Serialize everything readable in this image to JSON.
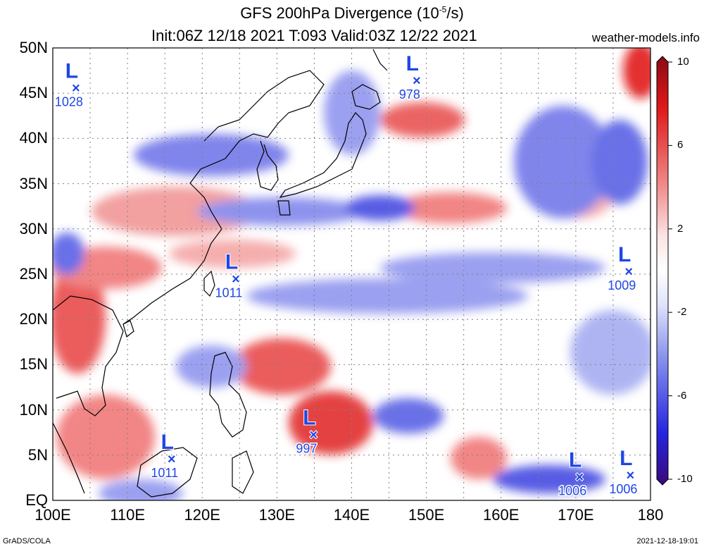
{
  "title": {
    "line1_prefix": "GFS 200hPa Divergence (10",
    "line1_exp": "-5",
    "line1_suffix": "/s)",
    "line2": "Init:06Z 12/18 2021 T:093 Valid:03Z 12/22 2021"
  },
  "site": "weather-models.info",
  "footer_left": "GrADS/COLA",
  "footer_right": "2021-12-18-19:01",
  "map": {
    "lon_range": [
      100,
      180
    ],
    "lat_range": [
      0,
      50
    ],
    "lat_labels": [
      "50N",
      "45N",
      "40N",
      "35N",
      "30N",
      "25N",
      "20N",
      "15N",
      "10N",
      "5N",
      "EQ"
    ],
    "lon_labels": [
      "100E",
      "110E",
      "120E",
      "130E",
      "140E",
      "150E",
      "160E",
      "170E",
      "180"
    ],
    "colors": {
      "positive_strong": "#e01010",
      "positive_weak": "#f4a0a0",
      "negative_strong": "#2020e0",
      "negative_weak": "#a0a8f0",
      "low_marker": "#1e46e6"
    }
  },
  "lows": [
    {
      "label": "L",
      "value": "1028",
      "lon": 103.1,
      "lat": 45.6
    },
    {
      "label": "L",
      "value": "978",
      "lon": 148.7,
      "lat": 46.4
    },
    {
      "label": "L",
      "value": "1011",
      "lon": 124.5,
      "lat": 24.5
    },
    {
      "label": "L",
      "value": "1009",
      "lon": 177.1,
      "lat": 25.3
    },
    {
      "label": "L",
      "value": "997",
      "lon": 134.9,
      "lat": 7.3
    },
    {
      "label": "L",
      "value": "1011",
      "lon": 115.9,
      "lat": 4.6
    },
    {
      "label": "L",
      "value": "1006",
      "lon": 170.5,
      "lat": 2.6
    },
    {
      "label": "L",
      "value": "1006",
      "lon": 177.3,
      "lat": 2.8
    }
  ],
  "colorbar": {
    "labels": [
      "10",
      "6",
      "2",
      "-2",
      "-6",
      "-10"
    ],
    "values": [
      10,
      6,
      2,
      -2,
      -6,
      -10
    ]
  }
}
